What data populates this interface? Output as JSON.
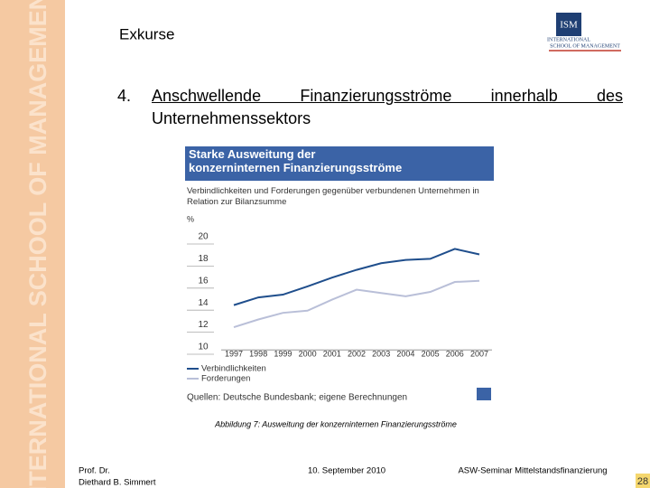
{
  "banner": "INTERNATIONAL SCHOOL OF MANAGEMENT",
  "logo": {
    "mark": "ISM",
    "line1": "INTERNATIONAL",
    "line2": "SCHOOL OF MANAGEMENT"
  },
  "header": {
    "title": "Exkurse",
    "number": "4.",
    "heading": "Anschwellende Finanzierungsströme innerhalb des Unternehmenssektors"
  },
  "chart_data": {
    "type": "line",
    "title": "Starke Ausweitung der konzerninternen Finanzierungsströme",
    "subtitle": "Verbindlichkeiten und Forderungen gegenüber verbundenen Unternehmen in Relation zur Bilanzsumme",
    "y_label": "%",
    "categories": [
      "1997",
      "1998",
      "1999",
      "2000",
      "2001",
      "2002",
      "2003",
      "2004",
      "2005",
      "2006",
      "2007"
    ],
    "series": [
      {
        "name": "Verbindlichkeiten",
        "color": "#1f4e8c",
        "values": [
          13.8,
          14.5,
          14.75,
          15.5,
          16.3,
          17.0,
          17.6,
          17.9,
          18.0,
          18.9,
          18.4
        ]
      },
      {
        "name": "Forderungen",
        "color": "#b9bfd8",
        "values": [
          11.8,
          12.5,
          13.1,
          13.3,
          14.3,
          15.2,
          14.9,
          14.6,
          15.0,
          15.9,
          16.0
        ]
      }
    ],
    "ylim": [
      9,
      20.5
    ],
    "yticks": [
      10,
      12,
      14,
      16,
      18,
      20
    ],
    "source": "Quellen: Deutsche Bundesbank; eigene Berechnungen"
  },
  "caption": "Abbildung 7: Ausweitung der konzerninternen Finanzierungsströme",
  "footer": {
    "author1": "Prof. Dr.",
    "author2": "Diethard B. Simmert",
    "date": "10. September 2010",
    "event": "ASW-Seminar Mittelstandsfinanzierung",
    "page": "28"
  }
}
